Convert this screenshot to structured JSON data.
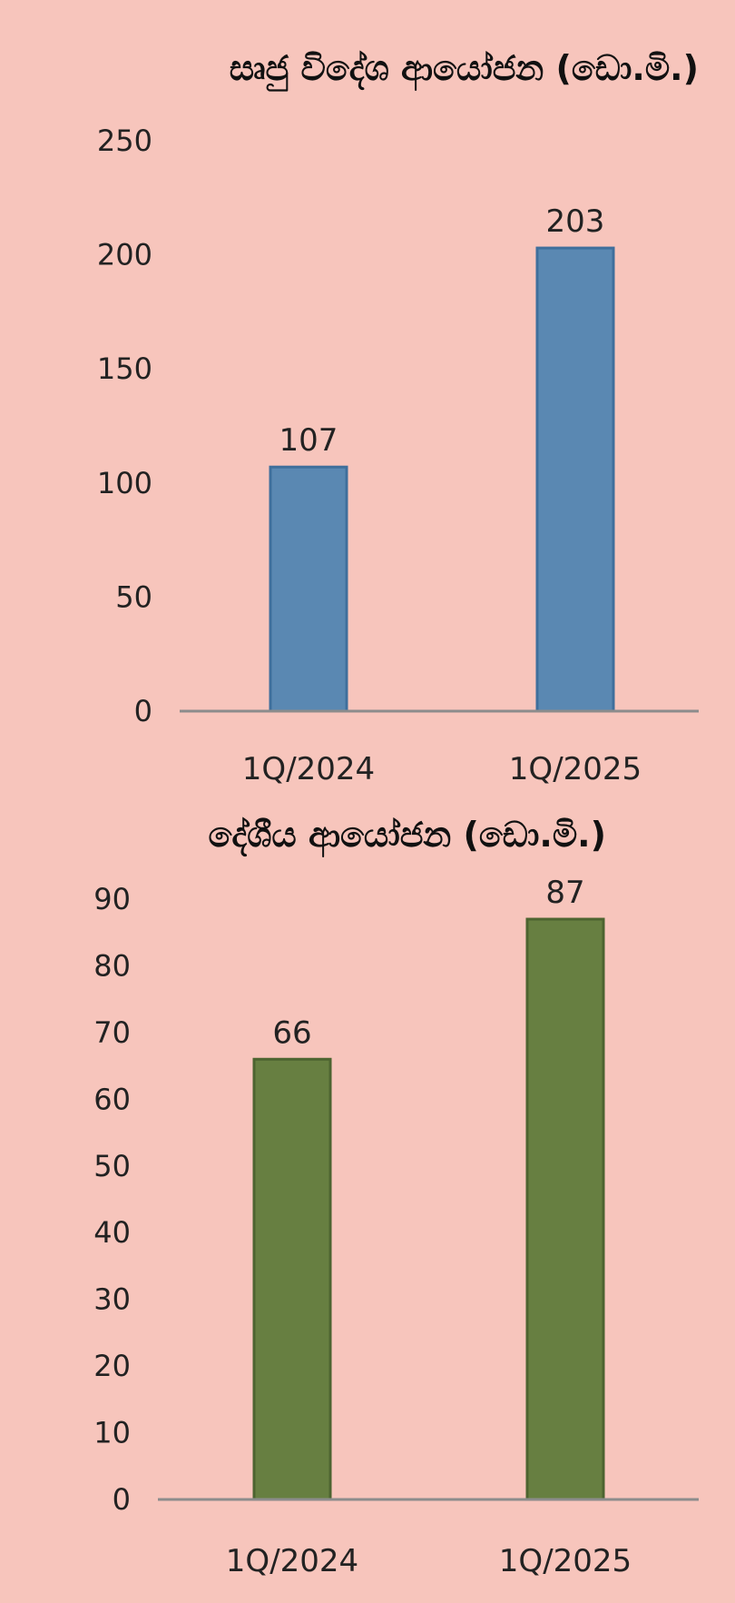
{
  "chart_data": [
    {
      "type": "bar",
      "title": "සෘජු විදේශ ආයෝජන (ඩො.මි.)",
      "categories": [
        "1Q/2024",
        "1Q/2025"
      ],
      "values": [
        107,
        203
      ],
      "data_labels": [
        "107",
        "203"
      ],
      "yticks": [
        "0",
        "50",
        "100",
        "150",
        "200",
        "250"
      ],
      "ylim": [
        0,
        250
      ],
      "grid": false,
      "bar_color": "#5a88b2",
      "bar_edge_color": "#3f6f9c"
    },
    {
      "type": "bar",
      "title": "දේශීය ආයෝජන (ඩො.මි.)",
      "categories": [
        "1Q/2024",
        "1Q/2025"
      ],
      "values": [
        66,
        87
      ],
      "data_labels": [
        "66",
        "87"
      ],
      "yticks": [
        "0",
        "10",
        "20",
        "30",
        "40",
        "50",
        "60",
        "70",
        "80",
        "90"
      ],
      "ylim": [
        0,
        90
      ],
      "grid": false,
      "bar_color": "#677f41",
      "bar_edge_color": "#4d6430"
    }
  ],
  "colors": {
    "background": "#f7c5bc",
    "axis": "#8c8c8c",
    "text": "#222222"
  }
}
